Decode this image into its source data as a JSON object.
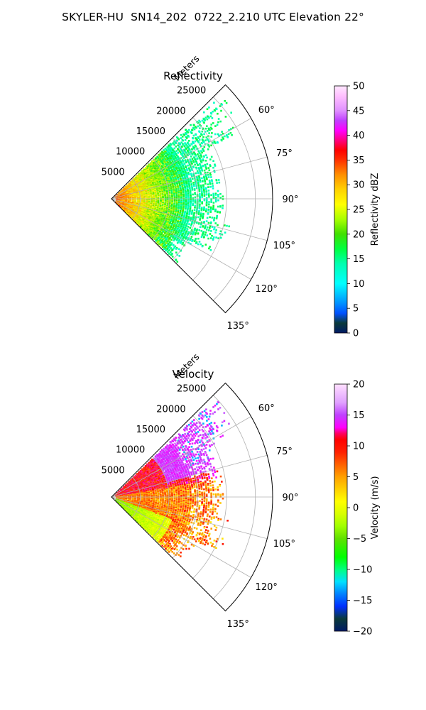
{
  "title": "SKYLER-HU  SN14_202  0722_2.210 UTC Elevation 22°",
  "colors": {
    "grid": "#b0b0b0",
    "frame": "#000000"
  },
  "chart_data": [
    {
      "type": "polar-sector (radar PPI)",
      "title": "Reflectivity",
      "radial_label": "Meters",
      "r_ticks": [
        5000,
        10000,
        15000,
        20000,
        25000
      ],
      "r_tick_labels": [
        "5000",
        "10000",
        "15000",
        "20000",
        "25000"
      ],
      "r_max": 28000,
      "theta_range_deg": [
        45,
        135
      ],
      "theta_ticks": [
        60,
        75,
        90,
        105,
        120,
        135
      ],
      "theta_tick_labels": [
        "60°",
        "75°",
        "90°",
        "105°",
        "120°",
        "135°"
      ],
      "grid": true,
      "colorbar": {
        "label": "Reflectivity dBZ",
        "vmin": 0,
        "vmax": 50,
        "ticks": [
          0,
          5,
          10,
          15,
          20,
          25,
          30,
          35,
          40,
          45,
          50
        ],
        "tick_labels": [
          "0",
          "5",
          "10",
          "15",
          "20",
          "25",
          "30",
          "35",
          "40",
          "45",
          "50"
        ],
        "stops": [
          [
            0,
            "#001a66"
          ],
          [
            2,
            "#0a3a3a"
          ],
          [
            4,
            "#0050ff"
          ],
          [
            6,
            "#0090ff"
          ],
          [
            8,
            "#00c8ff"
          ],
          [
            10,
            "#00ffff"
          ],
          [
            14,
            "#00ffb0"
          ],
          [
            17,
            "#00ff40"
          ],
          [
            20,
            "#40e000"
          ],
          [
            23,
            "#a8ff00"
          ],
          [
            26,
            "#ffff00"
          ],
          [
            29,
            "#ffd200"
          ],
          [
            32,
            "#ff9000"
          ],
          [
            35,
            "#ff3000"
          ],
          [
            37,
            "#ff0000"
          ],
          [
            39,
            "#ff0080"
          ],
          [
            41,
            "#ff00ff"
          ],
          [
            43,
            "#c040ff"
          ],
          [
            45,
            "#e090ff"
          ],
          [
            48,
            "#ffc0ff"
          ],
          [
            50,
            "#ffe8ff"
          ]
        ]
      }
    },
    {
      "type": "polar-sector (radar PPI)",
      "title": "Velocity",
      "radial_label": "Meters",
      "r_ticks": [
        5000,
        10000,
        15000,
        20000,
        25000
      ],
      "r_tick_labels": [
        "5000",
        "10000",
        "15000",
        "20000",
        "25000"
      ],
      "r_max": 28000,
      "theta_range_deg": [
        45,
        135
      ],
      "theta_ticks": [
        60,
        75,
        90,
        105,
        120,
        135
      ],
      "theta_tick_labels": [
        "60°",
        "75°",
        "90°",
        "105°",
        "120°",
        "135°"
      ],
      "grid": true,
      "colorbar": {
        "label": "Velocity (m/s)",
        "vmin": -20,
        "vmax": 20,
        "ticks": [
          -20,
          -15,
          -10,
          -5,
          0,
          5,
          10,
          15,
          20
        ],
        "tick_labels": [
          "−20",
          "−15",
          "−10",
          "−5",
          "0",
          "5",
          "10",
          "15",
          "20"
        ],
        "stops": [
          [
            -20,
            "#001a66"
          ],
          [
            -18,
            "#0a3a3a"
          ],
          [
            -16,
            "#0030ff"
          ],
          [
            -14,
            "#0080ff"
          ],
          [
            -12,
            "#00e0ff"
          ],
          [
            -10,
            "#00ff80"
          ],
          [
            -8,
            "#00ff00"
          ],
          [
            -5,
            "#60e000"
          ],
          [
            -3,
            "#a0ff00"
          ],
          [
            -1,
            "#d8ff00"
          ],
          [
            1,
            "#ffff00"
          ],
          [
            3,
            "#ffd000"
          ],
          [
            5,
            "#ffa000"
          ],
          [
            7,
            "#ff6000"
          ],
          [
            9,
            "#ff2000"
          ],
          [
            11,
            "#ff0000"
          ],
          [
            12,
            "#ff0060"
          ],
          [
            13,
            "#ff00ff"
          ],
          [
            15,
            "#c040ff"
          ],
          [
            17,
            "#e0a0ff"
          ],
          [
            20,
            "#ffe0ff"
          ]
        ]
      }
    }
  ]
}
